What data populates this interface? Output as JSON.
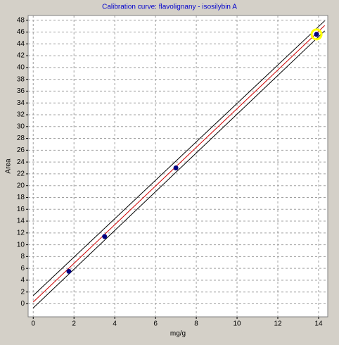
{
  "chart_data": {
    "type": "scatter",
    "title": "Calibration curve: flavolignany - isosilybin A",
    "x_label": "mg/g",
    "y_label": "Area",
    "xlim": [
      -0.25,
      14.45
    ],
    "ylim": [
      -2.2,
      48.8
    ],
    "xticks": [
      0,
      2,
      4,
      6,
      8,
      10,
      12,
      14
    ],
    "yticks": [
      0,
      2,
      4,
      6,
      8,
      10,
      12,
      14,
      16,
      18,
      20,
      22,
      24,
      26,
      28,
      30,
      32,
      34,
      36,
      38,
      40,
      42,
      44,
      46,
      48
    ],
    "grid": true,
    "series": [
      {
        "type": "scatter",
        "color": "#000080",
        "x": [
          1.75,
          3.5,
          7.0,
          13.9
        ],
        "values": [
          5.5,
          11.4,
          23.0,
          45.6
        ],
        "highlight": 3,
        "highlight_color": "#ffff00"
      },
      {
        "type": "line",
        "color": "#cc0000",
        "x": [
          0,
          14.3
        ],
        "values": [
          0.3,
          47.1
        ]
      },
      {
        "type": "line",
        "color": "#000000",
        "x": [
          0,
          14.3
        ],
        "values": [
          1.4,
          47.9
        ]
      },
      {
        "type": "line",
        "color": "#000000",
        "x": [
          0,
          14.3
        ],
        "values": [
          -0.7,
          46.2
        ]
      }
    ]
  }
}
